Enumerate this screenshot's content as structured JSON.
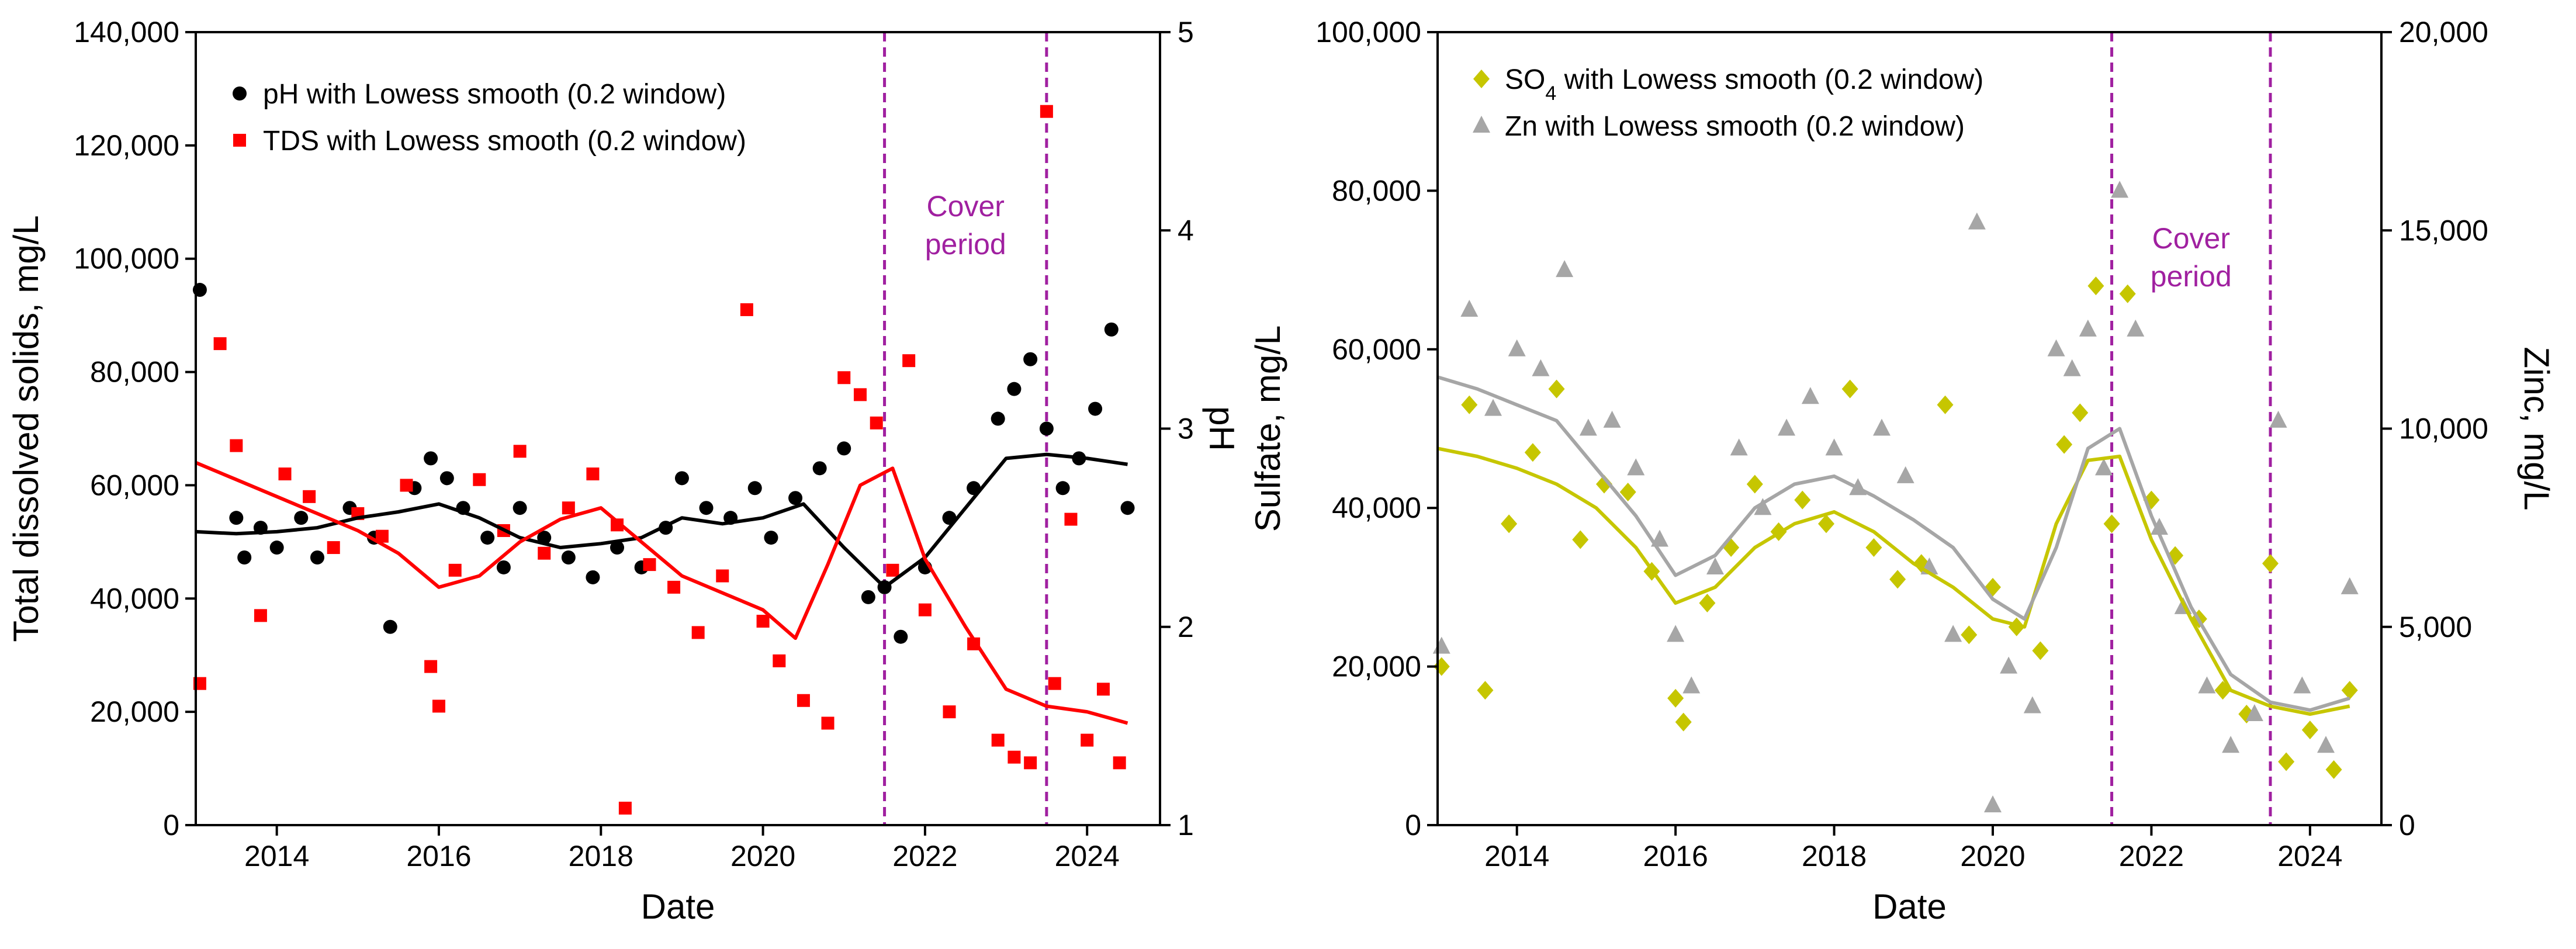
{
  "colors": {
    "ph": "#000000",
    "tds": "#ff0000",
    "so4": "#c6c600",
    "zn": "#a6a6a6",
    "cover": "#a020a0",
    "axis": "#000000"
  },
  "chart_data": [
    {
      "type": "scatter",
      "title": "",
      "xlabel": "Date",
      "ylabel": "Total dissolved solids, mg/L",
      "y2label": "pH",
      "xlim": [
        2013.0,
        2024.9
      ],
      "ylim": [
        0,
        140000
      ],
      "y2lim": [
        1,
        5
      ],
      "xticks": [
        2014,
        2016,
        2018,
        2020,
        2022,
        2024
      ],
      "xtick_labels": [
        "2014",
        "2016",
        "2018",
        "2020",
        "2022",
        "2024"
      ],
      "yticks": [
        0,
        20000,
        40000,
        60000,
        80000,
        100000,
        120000,
        140000
      ],
      "ytick_labels": [
        "0",
        "20,000",
        "40,000",
        "60,000",
        "80,000",
        "100,000",
        "120,000",
        "140,000"
      ],
      "y2ticks": [
        1,
        2,
        3,
        4,
        5
      ],
      "y2tick_labels": [
        "1",
        "2",
        "3",
        "4",
        "5"
      ],
      "legend_position": "top-left",
      "vlines": [
        2021.5,
        2023.5
      ],
      "annotation": {
        "line1": "Cover",
        "line2": "period"
      },
      "series": [
        {
          "name": "pH with Lowess smooth (0.2 window)",
          "axis": "y2",
          "marker": "circle",
          "color_key": "ph",
          "x": [
            2013.05,
            2013.5,
            2013.6,
            2013.8,
            2014.0,
            2014.3,
            2014.5,
            2014.9,
            2015.2,
            2015.4,
            2015.7,
            2015.9,
            2016.1,
            2016.3,
            2016.6,
            2016.8,
            2017.0,
            2017.3,
            2017.6,
            2017.9,
            2018.2,
            2018.5,
            2018.8,
            2019.0,
            2019.3,
            2019.6,
            2019.9,
            2020.1,
            2020.4,
            2020.7,
            2021.0,
            2021.3,
            2021.5,
            2021.7,
            2022.0,
            2022.3,
            2022.6,
            2022.9,
            2023.1,
            2023.3,
            2023.5,
            2023.7,
            2023.9,
            2024.1,
            2024.3,
            2024.5
          ],
          "values": [
            3.7,
            2.55,
            2.35,
            2.5,
            2.4,
            2.55,
            2.35,
            2.6,
            2.45,
            2.0,
            2.7,
            2.85,
            2.75,
            2.6,
            2.45,
            2.3,
            2.6,
            2.45,
            2.35,
            2.25,
            2.4,
            2.3,
            2.5,
            2.75,
            2.6,
            2.55,
            2.7,
            2.45,
            2.65,
            2.8,
            2.9,
            2.15,
            2.2,
            1.95,
            2.3,
            2.55,
            2.7,
            3.05,
            3.2,
            3.35,
            3.0,
            2.7,
            2.85,
            3.1,
            3.5,
            2.6
          ]
        },
        {
          "name": "TDS with Lowess smooth (0.2 window)",
          "axis": "y",
          "marker": "square",
          "color_key": "tds",
          "x": [
            2013.05,
            2013.3,
            2013.5,
            2013.8,
            2014.1,
            2014.4,
            2014.7,
            2015.0,
            2015.3,
            2015.6,
            2015.9,
            2016.0,
            2016.2,
            2016.5,
            2016.8,
            2017.0,
            2017.3,
            2017.6,
            2017.9,
            2018.2,
            2018.3,
            2018.6,
            2018.9,
            2019.2,
            2019.5,
            2019.8,
            2020.0,
            2020.2,
            2020.5,
            2020.8,
            2021.0,
            2021.2,
            2021.4,
            2021.6,
            2021.8,
            2022.0,
            2022.3,
            2022.6,
            2022.9,
            2023.1,
            2023.3,
            2023.5,
            2023.6,
            2023.8,
            2024.0,
            2024.2,
            2024.4
          ],
          "values": [
            25000,
            85000,
            67000,
            37000,
            62000,
            58000,
            49000,
            55000,
            51000,
            60000,
            28000,
            21000,
            45000,
            61000,
            52000,
            66000,
            48000,
            56000,
            62000,
            53000,
            3000,
            46000,
            42000,
            34000,
            44000,
            91000,
            36000,
            29000,
            22000,
            18000,
            79000,
            76000,
            71000,
            45000,
            82000,
            38000,
            20000,
            32000,
            15000,
            12000,
            11000,
            126000,
            25000,
            54000,
            15000,
            24000,
            11000
          ]
        }
      ],
      "smooth": [
        {
          "name": "pH lowess",
          "axis": "y2",
          "color_key": "ph",
          "x": [
            2013.0,
            2013.5,
            2014.0,
            2014.5,
            2015.0,
            2015.5,
            2016.0,
            2016.5,
            2017.0,
            2017.5,
            2018.0,
            2018.5,
            2019.0,
            2019.5,
            2020.0,
            2020.5,
            2021.0,
            2021.5,
            2022.0,
            2022.5,
            2023.0,
            2023.5,
            2024.0,
            2024.5
          ],
          "values": [
            2.48,
            2.47,
            2.48,
            2.5,
            2.55,
            2.58,
            2.62,
            2.55,
            2.45,
            2.4,
            2.42,
            2.45,
            2.55,
            2.52,
            2.55,
            2.62,
            2.4,
            2.2,
            2.35,
            2.6,
            2.85,
            2.87,
            2.85,
            2.82
          ]
        },
        {
          "name": "TDS lowess",
          "axis": "y",
          "color_key": "tds",
          "x": [
            2013.0,
            2013.5,
            2014.0,
            2014.5,
            2015.0,
            2015.5,
            2016.0,
            2016.5,
            2017.0,
            2017.5,
            2018.0,
            2018.5,
            2019.0,
            2019.5,
            2020.0,
            2020.4,
            2020.8,
            2021.2,
            2021.6,
            2022.0,
            2022.5,
            2023.0,
            2023.5,
            2024.0,
            2024.5
          ],
          "values": [
            64000,
            61000,
            58000,
            55000,
            52000,
            48000,
            42000,
            44000,
            50000,
            54000,
            56000,
            50000,
            44000,
            41000,
            38000,
            33000,
            46000,
            60000,
            63000,
            47000,
            35000,
            24000,
            21000,
            20000,
            18000
          ]
        }
      ]
    },
    {
      "type": "scatter",
      "title": "",
      "xlabel": "Date",
      "ylabel": "Sulfate, mg/L",
      "y2label": "Zinc, mg/L",
      "xlim": [
        2013.0,
        2024.9
      ],
      "ylim": [
        0,
        100000
      ],
      "y2lim": [
        0,
        20000
      ],
      "xticks": [
        2014,
        2016,
        2018,
        2020,
        2022,
        2024
      ],
      "xtick_labels": [
        "2014",
        "2016",
        "2018",
        "2020",
        "2022",
        "2024"
      ],
      "yticks": [
        0,
        20000,
        40000,
        60000,
        80000,
        100000
      ],
      "ytick_labels": [
        "0",
        "20,000",
        "40,000",
        "60,000",
        "80,000",
        "100,000"
      ],
      "y2ticks": [
        0,
        5000,
        10000,
        15000,
        20000
      ],
      "y2tick_labels": [
        "0",
        "5,000",
        "10,000",
        "15,000",
        "20,000"
      ],
      "legend_position": "top-left",
      "vlines": [
        2021.5,
        2023.5
      ],
      "annotation": {
        "line1": "Cover",
        "line2": "period"
      },
      "legend_labels": {
        "so4_prefix": "SO",
        "so4_sub": "4",
        "so4_suffix": " with Lowess smooth (0.2 window)",
        "zn": "Zn with Lowess smooth (0.2 window)"
      },
      "series": [
        {
          "name": "SO4 with Lowess smooth (0.2 window)",
          "axis": "y",
          "marker": "diamond",
          "color_key": "so4",
          "x": [
            2013.05,
            2013.4,
            2013.6,
            2013.9,
            2014.2,
            2014.5,
            2014.8,
            2015.1,
            2015.4,
            2015.7,
            2016.0,
            2016.1,
            2016.4,
            2016.7,
            2017.0,
            2017.3,
            2017.6,
            2017.9,
            2018.2,
            2018.5,
            2018.8,
            2019.1,
            2019.4,
            2019.7,
            2020.0,
            2020.3,
            2020.6,
            2020.9,
            2021.1,
            2021.3,
            2021.5,
            2021.7,
            2022.0,
            2022.3,
            2022.6,
            2022.9,
            2023.2,
            2023.5,
            2023.7,
            2024.0,
            2024.3,
            2024.5
          ],
          "values": [
            20000,
            53000,
            17000,
            38000,
            47000,
            55000,
            36000,
            43000,
            42000,
            32000,
            16000,
            13000,
            28000,
            35000,
            43000,
            37000,
            41000,
            38000,
            55000,
            35000,
            31000,
            33000,
            53000,
            24000,
            30000,
            25000,
            22000,
            48000,
            52000,
            68000,
            38000,
            67000,
            41000,
            34000,
            26000,
            17000,
            14000,
            33000,
            8000,
            12000,
            7000,
            17000
          ]
        },
        {
          "name": "Zn with Lowess smooth (0.2 window)",
          "axis": "y2",
          "marker": "triangle",
          "color_key": "zn",
          "x": [
            2013.05,
            2013.4,
            2013.7,
            2014.0,
            2014.3,
            2014.6,
            2014.9,
            2015.2,
            2015.5,
            2015.8,
            2016.0,
            2016.2,
            2016.5,
            2016.8,
            2017.1,
            2017.4,
            2017.7,
            2018.0,
            2018.3,
            2018.6,
            2018.9,
            2019.2,
            2019.5,
            2019.8,
            2020.0,
            2020.2,
            2020.5,
            2020.8,
            2021.0,
            2021.2,
            2021.4,
            2021.6,
            2021.8,
            2022.1,
            2022.4,
            2022.7,
            2023.0,
            2023.3,
            2023.6,
            2023.9,
            2024.2,
            2024.5
          ],
          "values": [
            4500,
            13000,
            10500,
            12000,
            11500,
            14000,
            10000,
            10200,
            9000,
            7200,
            4800,
            3500,
            6500,
            9500,
            8000,
            10000,
            10800,
            9500,
            8500,
            10000,
            8800,
            6500,
            4800,
            15200,
            500,
            4000,
            3000,
            12000,
            11500,
            12500,
            9000,
            16000,
            12500,
            7500,
            5500,
            3500,
            2000,
            2800,
            10200,
            3500,
            2000,
            6000
          ]
        }
      ],
      "smooth": [
        {
          "name": "SO4 lowess",
          "axis": "y",
          "color_key": "so4",
          "x": [
            2013.0,
            2013.5,
            2014.0,
            2014.5,
            2015.0,
            2015.5,
            2016.0,
            2016.5,
            2017.0,
            2017.5,
            2018.0,
            2018.5,
            2019.0,
            2019.5,
            2020.0,
            2020.4,
            2020.8,
            2021.2,
            2021.6,
            2022.0,
            2022.5,
            2023.0,
            2023.5,
            2024.0,
            2024.5
          ],
          "values": [
            47500,
            46500,
            45000,
            43000,
            40000,
            35000,
            28000,
            30000,
            35000,
            38000,
            39500,
            37000,
            33000,
            30000,
            26000,
            25000,
            38000,
            46000,
            46500,
            36000,
            26000,
            17000,
            15000,
            14000,
            15000
          ]
        },
        {
          "name": "Zn lowess",
          "axis": "y2",
          "color_key": "zn",
          "x": [
            2013.0,
            2013.5,
            2014.0,
            2014.5,
            2015.0,
            2015.5,
            2016.0,
            2016.5,
            2017.0,
            2017.5,
            2018.0,
            2018.5,
            2019.0,
            2019.5,
            2020.0,
            2020.4,
            2020.8,
            2021.2,
            2021.6,
            2022.0,
            2022.5,
            2023.0,
            2023.5,
            2024.0,
            2024.5
          ],
          "values": [
            11300,
            11000,
            10600,
            10200,
            9000,
            7800,
            6300,
            6800,
            8000,
            8600,
            8800,
            8300,
            7700,
            7000,
            5700,
            5200,
            7000,
            9500,
            10000,
            7800,
            5500,
            3800,
            3100,
            2900,
            3200
          ]
        }
      ]
    }
  ]
}
